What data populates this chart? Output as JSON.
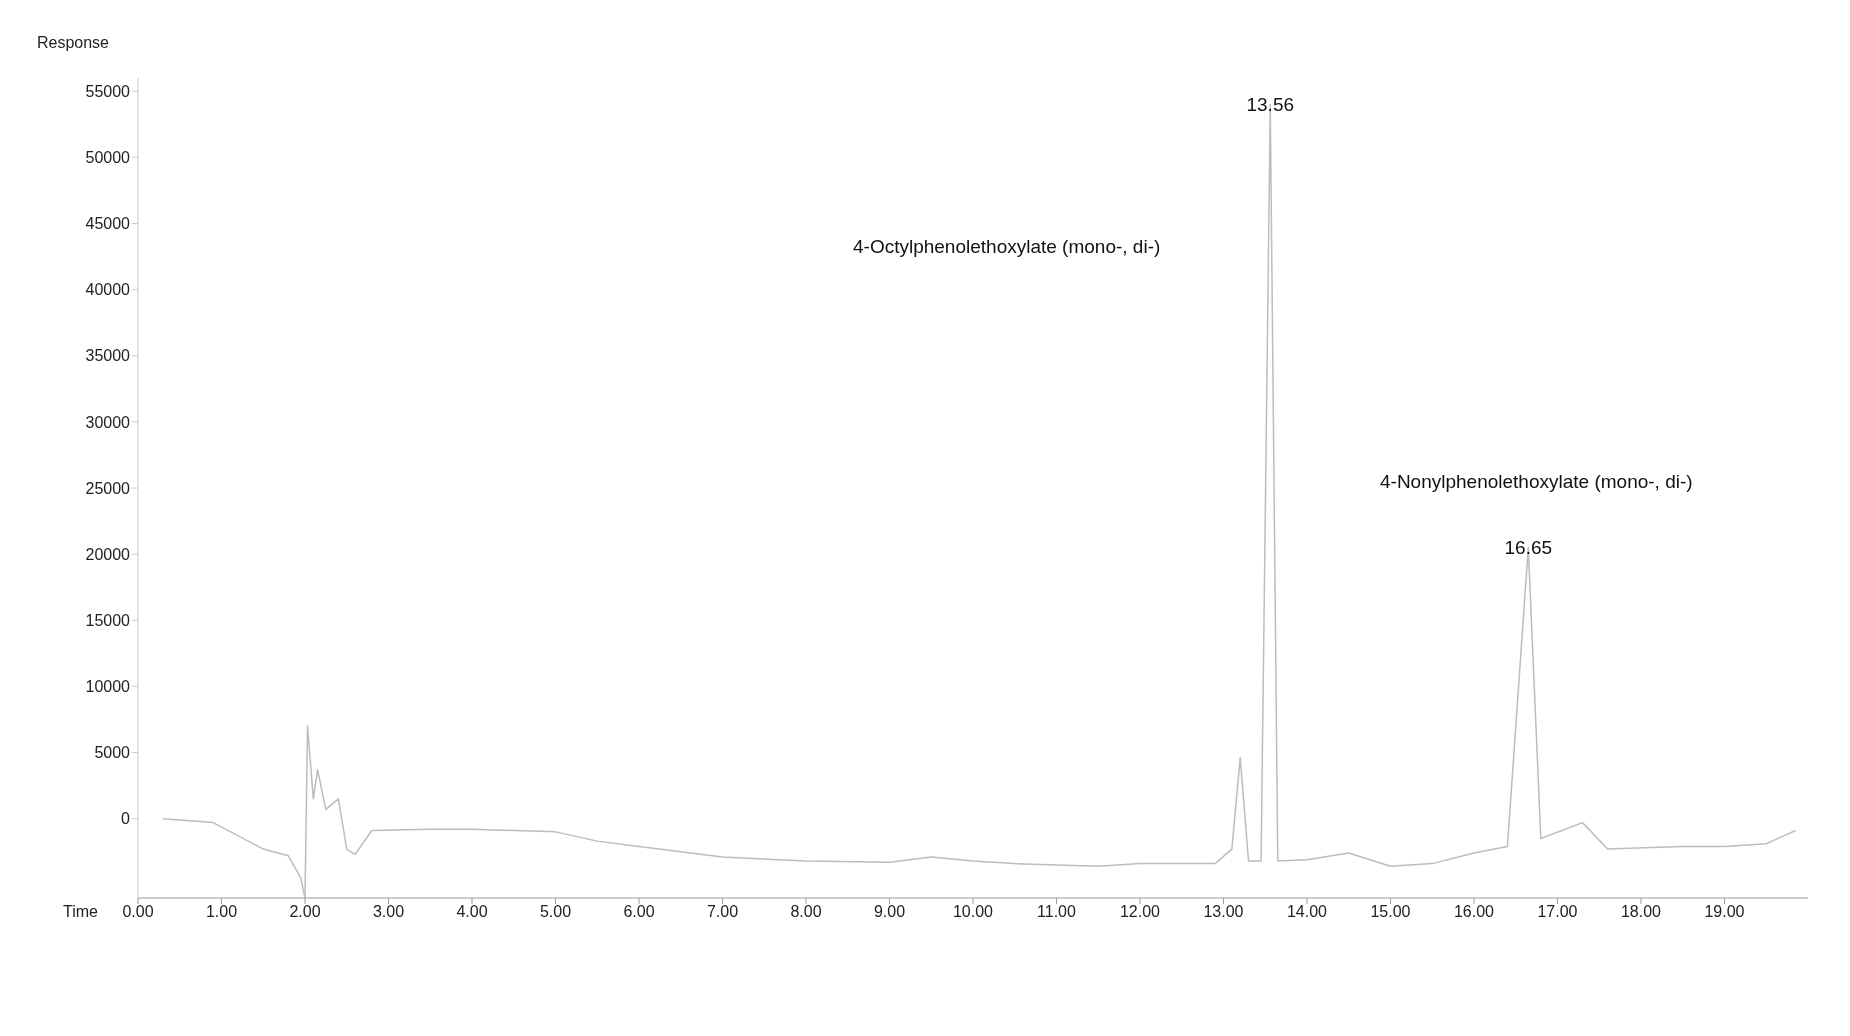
{
  "chart_data": {
    "type": "line",
    "xlabel": "Time",
    "ylabel": "Response",
    "x": [
      0.3,
      0.9,
      1.5,
      1.8,
      1.95,
      2.0,
      2.03,
      2.1,
      2.15,
      2.25,
      2.4,
      2.5,
      2.6,
      2.8,
      3.5,
      4.0,
      5.0,
      5.5,
      6.0,
      7.0,
      8.0,
      9.0,
      9.5,
      10.0,
      10.5,
      11.5,
      12.0,
      12.9,
      13.1,
      13.2,
      13.3,
      13.45,
      13.56,
      13.65,
      14.0,
      14.5,
      15.0,
      15.5,
      16.0,
      16.4,
      16.65,
      16.8,
      17.3,
      17.6,
      18.5,
      19.0,
      19.5,
      19.85
    ],
    "series": [
      {
        "color": "#bdbdbd",
        "values": [
          0,
          -300,
          -2300,
          -2800,
          -4500,
          -6000,
          7000,
          1500,
          3700,
          700,
          1500,
          -2300,
          -2700,
          -900,
          -800,
          -800,
          -1000,
          -1700,
          -2100,
          -2900,
          -3200,
          -3300,
          -2900,
          -3200,
          -3400,
          -3600,
          -3400,
          -3400,
          -2300,
          4600,
          -3200,
          -3200,
          54000,
          -3200,
          -3100,
          -2600,
          -3600,
          -3400,
          -2600,
          -2100,
          20500,
          -1500,
          -300,
          -2300,
          -2100,
          -2100,
          -1900,
          -900
        ]
      }
    ],
    "xlim": [
      0,
      20
    ],
    "xticks": [
      {
        "value": 0,
        "label": "0.00"
      },
      {
        "value": 1,
        "label": "1.00"
      },
      {
        "value": 2,
        "label": "2.00"
      },
      {
        "value": 3,
        "label": "3.00"
      },
      {
        "value": 4,
        "label": "4.00"
      },
      {
        "value": 5,
        "label": "5.00"
      },
      {
        "value": 6,
        "label": "6.00"
      },
      {
        "value": 7,
        "label": "7.00"
      },
      {
        "value": 8,
        "label": "8.00"
      },
      {
        "value": 9,
        "label": "9.00"
      },
      {
        "value": 10,
        "label": "10.00"
      },
      {
        "value": 11,
        "label": "11.00"
      },
      {
        "value": 12,
        "label": "12.00"
      },
      {
        "value": 13,
        "label": "13.00"
      },
      {
        "value": 14,
        "label": "14.00"
      },
      {
        "value": 15,
        "label": "15.00"
      },
      {
        "value": 16,
        "label": "16.00"
      },
      {
        "value": 17,
        "label": "17.00"
      },
      {
        "value": 18,
        "label": "18.00"
      },
      {
        "value": 19,
        "label": "19.00"
      }
    ],
    "ylim": [
      -6000,
      56000
    ],
    "yticks": [
      0,
      5000,
      10000,
      15000,
      20000,
      25000,
      30000,
      35000,
      40000,
      45000,
      50000,
      55000
    ],
    "annotations": [
      {
        "text": "13.56",
        "x": 13.56,
        "y": 54000
      },
      {
        "text": "16.65",
        "x": 16.65,
        "y": 20500
      },
      "4-Octylphenolethoxylate (mono-, di-)",
      "4-Nonylphenolethoxylate (mono-, di-)"
    ],
    "grid": false,
    "legend": false,
    "marker": "none",
    "line_style": "solid"
  }
}
